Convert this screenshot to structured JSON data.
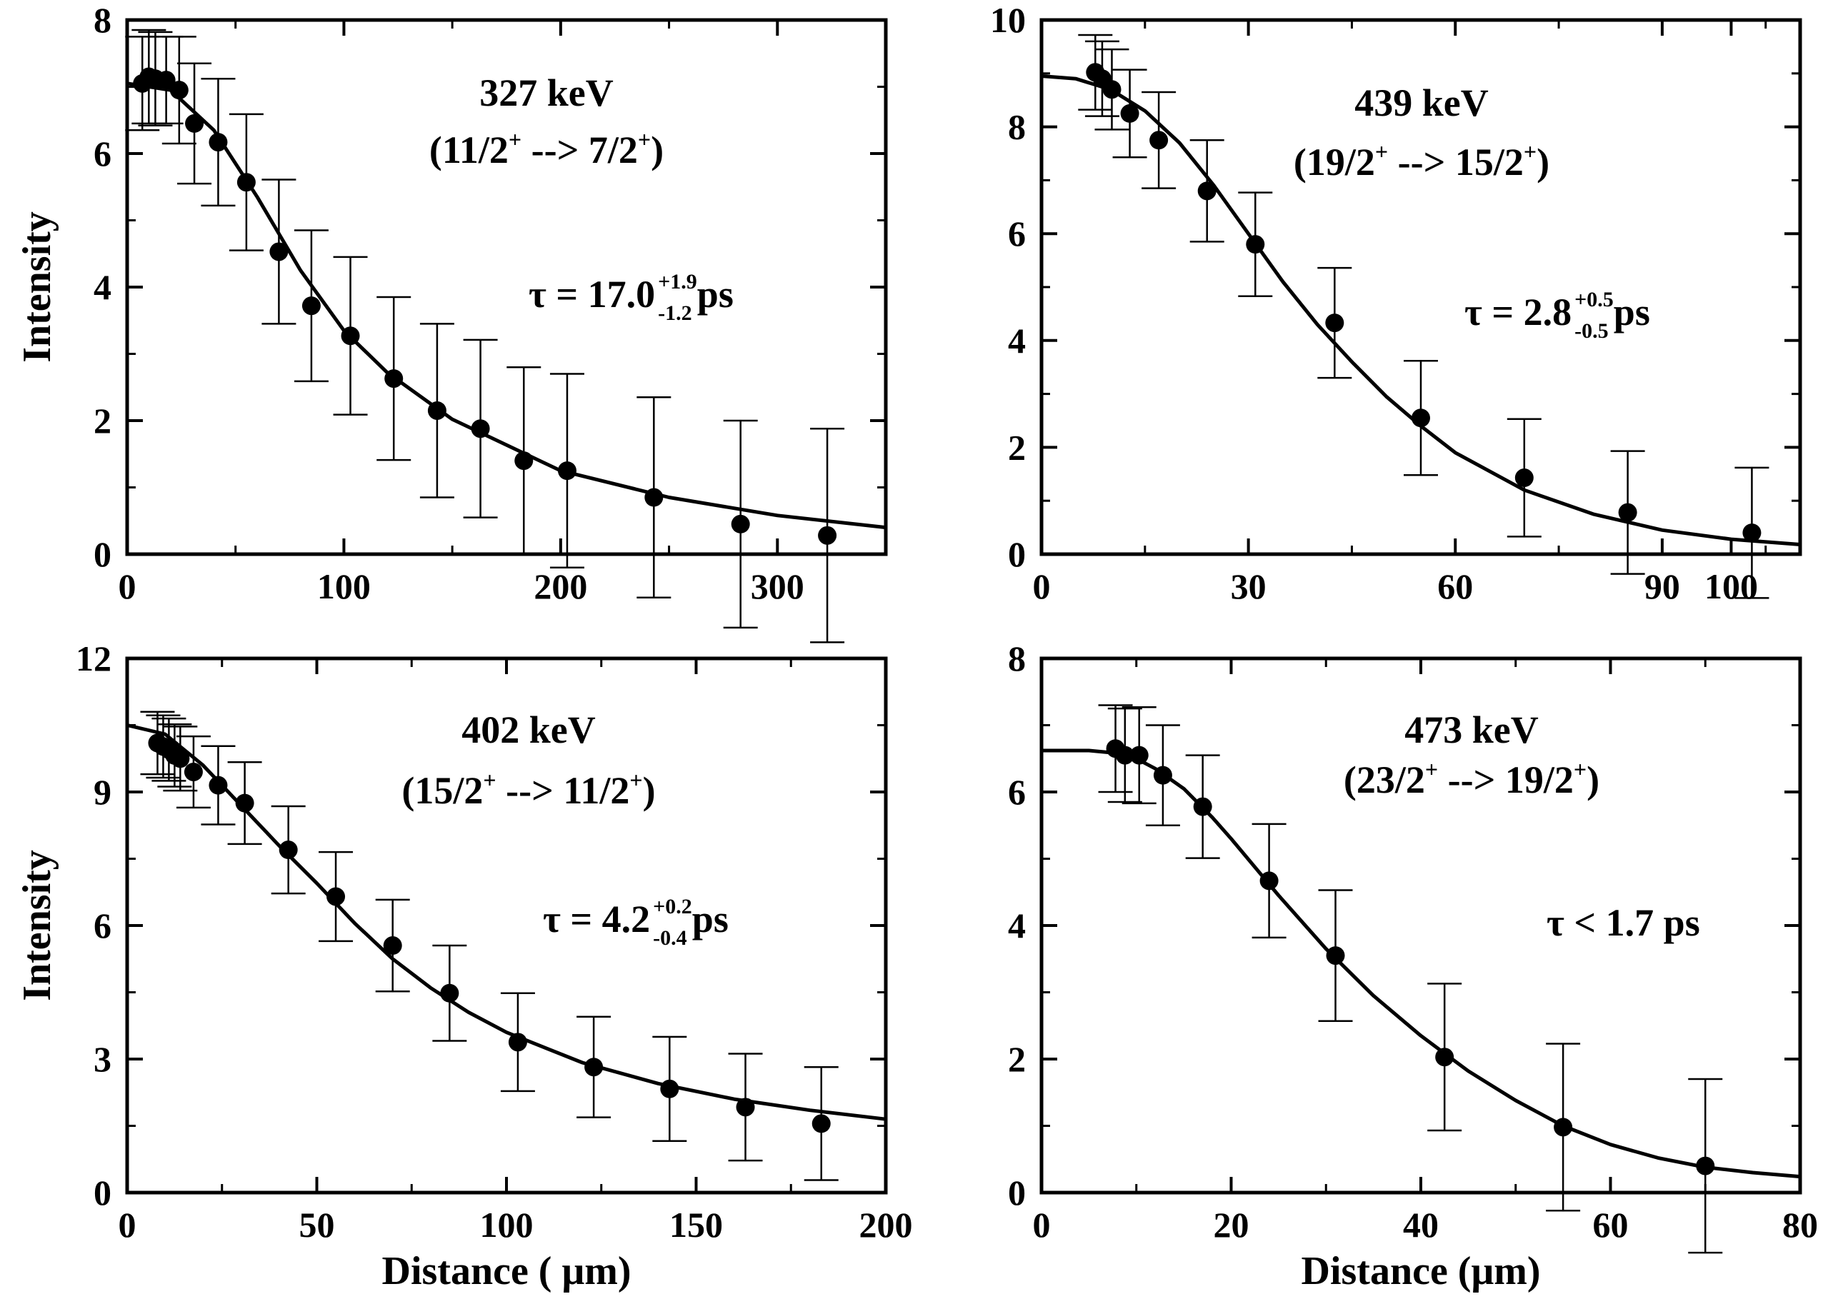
{
  "chart_data": [
    {
      "type": "scatter",
      "panel": "top-left",
      "title": "327 keV",
      "transition": {
        "a": "(11/2",
        "b": " --> 7/2",
        "c": ")",
        "sup": "+"
      },
      "tau": {
        "prefix": "τ = 17.0",
        "upper": "+1.9",
        "lower": "-1.2",
        "unit": " ps"
      },
      "xlabel": "",
      "ylabel": "Intensity",
      "xlim": [
        0,
        350
      ],
      "ylim": [
        0,
        8
      ],
      "xticks": [
        {
          "v": 0,
          "label": "0"
        },
        {
          "v": 100,
          "label": "100"
        },
        {
          "v": 200,
          "label": "200"
        },
        {
          "v": 300,
          "label": "300"
        }
      ],
      "yticks": [
        {
          "v": 0,
          "label": "0"
        },
        {
          "v": 2,
          "label": "2"
        },
        {
          "v": 4,
          "label": "4"
        },
        {
          "v": 6,
          "label": "6"
        },
        {
          "v": 8,
          "label": "8"
        }
      ],
      "points": [
        {
          "x": 7,
          "y": 7.05,
          "err": 0.7
        },
        {
          "x": 10,
          "y": 7.15,
          "err": 0.7
        },
        {
          "x": 13,
          "y": 7.12,
          "err": 0.7
        },
        {
          "x": 18,
          "y": 7.1,
          "err": 0.65
        },
        {
          "x": 24,
          "y": 6.95,
          "err": 0.8
        },
        {
          "x": 31,
          "y": 6.45,
          "err": 0.9
        },
        {
          "x": 42,
          "y": 6.17,
          "err": 0.95
        },
        {
          "x": 55,
          "y": 5.57,
          "err": 1.02
        },
        {
          "x": 70,
          "y": 4.53,
          "err": 1.08
        },
        {
          "x": 85,
          "y": 3.72,
          "err": 1.13
        },
        {
          "x": 103,
          "y": 3.27,
          "err": 1.18
        },
        {
          "x": 123,
          "y": 2.63,
          "err": 1.22
        },
        {
          "x": 143,
          "y": 2.15,
          "err": 1.3
        },
        {
          "x": 163,
          "y": 1.88,
          "err": 1.33
        },
        {
          "x": 183,
          "y": 1.4,
          "err": 1.4
        },
        {
          "x": 203,
          "y": 1.25,
          "err": 1.45
        },
        {
          "x": 243,
          "y": 0.85,
          "err": 1.5
        },
        {
          "x": 283,
          "y": 0.45,
          "err": 1.55
        },
        {
          "x": 323,
          "y": 0.28,
          "err": 1.6
        }
      ],
      "fit": {
        "x": [
          0,
          20,
          40,
          60,
          80,
          100,
          120,
          150,
          200,
          250,
          300,
          350
        ],
        "y": [
          7.05,
          6.95,
          6.35,
          5.35,
          4.25,
          3.35,
          2.72,
          2.02,
          1.25,
          0.85,
          0.58,
          0.4
        ]
      }
    },
    {
      "type": "scatter",
      "panel": "top-right",
      "title": "439 keV",
      "transition": {
        "a": "(19/2",
        "b": " --> 15/2",
        "c": ")",
        "sup": "+"
      },
      "tau": {
        "prefix": "τ = 2.8",
        "upper": "+0.5",
        "lower": "-0.5",
        "unit": " ps"
      },
      "xlabel": "",
      "ylabel": "",
      "xlim": [
        0,
        110
      ],
      "ylim": [
        0,
        10
      ],
      "xticks": [
        {
          "v": 0,
          "label": "0"
        },
        {
          "v": 30,
          "label": "30"
        },
        {
          "v": 60,
          "label": "60"
        },
        {
          "v": 90,
          "label": "90"
        },
        {
          "v": 100,
          "label": "100"
        }
      ],
      "yticks": [
        {
          "v": 0,
          "label": "0"
        },
        {
          "v": 2,
          "label": "2"
        },
        {
          "v": 4,
          "label": "4"
        },
        {
          "v": 6,
          "label": "6"
        },
        {
          "v": 8,
          "label": "8"
        },
        {
          "v": 10,
          "label": "10"
        }
      ],
      "points": [
        {
          "x": 7.8,
          "y": 9.02,
          "err": 0.7
        },
        {
          "x": 8.8,
          "y": 8.9,
          "err": 0.7
        },
        {
          "x": 10.2,
          "y": 8.7,
          "err": 0.75
        },
        {
          "x": 12.8,
          "y": 8.25,
          "err": 0.82
        },
        {
          "x": 17,
          "y": 7.75,
          "err": 0.9
        },
        {
          "x": 24,
          "y": 6.8,
          "err": 0.95
        },
        {
          "x": 31,
          "y": 5.8,
          "err": 0.97
        },
        {
          "x": 42.5,
          "y": 4.33,
          "err": 1.03
        },
        {
          "x": 55,
          "y": 2.55,
          "err": 1.07
        },
        {
          "x": 70,
          "y": 1.43,
          "err": 1.1
        },
        {
          "x": 85,
          "y": 0.78,
          "err": 1.15
        },
        {
          "x": 103,
          "y": 0.4,
          "err": 1.22
        }
      ],
      "fit": {
        "x": [
          0,
          5,
          10,
          15,
          20,
          25,
          30,
          35,
          40,
          45,
          50,
          55,
          60,
          70,
          80,
          90,
          100,
          110
        ],
        "y": [
          8.95,
          8.9,
          8.7,
          8.3,
          7.7,
          6.9,
          6.0,
          5.1,
          4.3,
          3.6,
          2.95,
          2.4,
          1.9,
          1.2,
          0.75,
          0.45,
          0.28,
          0.18
        ]
      }
    },
    {
      "type": "scatter",
      "panel": "bottom-left",
      "title": "402 keV",
      "transition": {
        "a": "(15/2",
        "b": " --> 11/2",
        "c": ")",
        "sup": "+"
      },
      "tau": {
        "prefix": "τ = 4.2",
        "upper": "+0.2",
        "lower": "-0.4",
        "unit": " ps"
      },
      "xlabel": "Distance ( μm)",
      "ylabel": "Intensity",
      "xlim": [
        0,
        200
      ],
      "ylim": [
        0,
        12
      ],
      "xticks": [
        {
          "v": 0,
          "label": "0"
        },
        {
          "v": 50,
          "label": "50"
        },
        {
          "v": 100,
          "label": "100"
        },
        {
          "v": 150,
          "label": "150"
        },
        {
          "v": 200,
          "label": "200"
        }
      ],
      "yticks": [
        {
          "v": 0,
          "label": "0"
        },
        {
          "v": 3,
          "label": "3"
        },
        {
          "v": 6,
          "label": "6"
        },
        {
          "v": 9,
          "label": "9"
        },
        {
          "v": 12,
          "label": "12"
        }
      ],
      "points": [
        {
          "x": 8,
          "y": 10.1,
          "err": 0.7
        },
        {
          "x": 9.5,
          "y": 10.02,
          "err": 0.7
        },
        {
          "x": 11,
          "y": 9.95,
          "err": 0.7
        },
        {
          "x": 12.5,
          "y": 9.82,
          "err": 0.7
        },
        {
          "x": 14,
          "y": 9.75,
          "err": 0.72
        },
        {
          "x": 17.5,
          "y": 9.45,
          "err": 0.8
        },
        {
          "x": 24,
          "y": 9.15,
          "err": 0.88
        },
        {
          "x": 31,
          "y": 8.75,
          "err": 0.92
        },
        {
          "x": 42.5,
          "y": 7.7,
          "err": 0.98
        },
        {
          "x": 55,
          "y": 6.65,
          "err": 1.0
        },
        {
          "x": 70,
          "y": 5.55,
          "err": 1.03
        },
        {
          "x": 85,
          "y": 4.48,
          "err": 1.07
        },
        {
          "x": 103,
          "y": 3.38,
          "err": 1.1
        },
        {
          "x": 123,
          "y": 2.82,
          "err": 1.13
        },
        {
          "x": 143,
          "y": 2.33,
          "err": 1.17
        },
        {
          "x": 163,
          "y": 1.92,
          "err": 1.2
        },
        {
          "x": 183,
          "y": 1.55,
          "err": 1.27
        }
      ],
      "fit": {
        "x": [
          0,
          10,
          20,
          30,
          40,
          50,
          60,
          70,
          80,
          90,
          100,
          120,
          140,
          160,
          180,
          200
        ],
        "y": [
          10.5,
          10.3,
          9.6,
          8.7,
          7.8,
          6.95,
          6.05,
          5.25,
          4.6,
          4.05,
          3.6,
          2.92,
          2.45,
          2.1,
          1.85,
          1.65
        ]
      }
    },
    {
      "type": "scatter",
      "panel": "bottom-right",
      "title": "473 keV",
      "transition": {
        "a": "(23/2",
        "b": " --> 19/2",
        "c": ")",
        "sup": "+"
      },
      "tau": {
        "prefix": "τ < 1.7 ps",
        "upper": "",
        "lower": "",
        "unit": ""
      },
      "xlabel": "Distance (μm)",
      "ylabel": "",
      "xlim": [
        0,
        80
      ],
      "ylim": [
        0,
        8
      ],
      "xticks": [
        {
          "v": 0,
          "label": "0"
        },
        {
          "v": 20,
          "label": "20"
        },
        {
          "v": 40,
          "label": "40"
        },
        {
          "v": 60,
          "label": "60"
        },
        {
          "v": 80,
          "label": "80"
        }
      ],
      "yticks": [
        {
          "v": 0,
          "label": "0"
        },
        {
          "v": 2,
          "label": "2"
        },
        {
          "v": 4,
          "label": "4"
        },
        {
          "v": 6,
          "label": "6"
        },
        {
          "v": 8,
          "label": "8"
        }
      ],
      "points": [
        {
          "x": 7.8,
          "y": 6.65,
          "err": 0.65
        },
        {
          "x": 8.8,
          "y": 6.55,
          "err": 0.7
        },
        {
          "x": 10.3,
          "y": 6.55,
          "err": 0.72
        },
        {
          "x": 12.8,
          "y": 6.25,
          "err": 0.75
        },
        {
          "x": 17,
          "y": 5.78,
          "err": 0.77
        },
        {
          "x": 24,
          "y": 4.67,
          "err": 0.85
        },
        {
          "x": 31,
          "y": 3.55,
          "err": 0.98
        },
        {
          "x": 42.5,
          "y": 2.03,
          "err": 1.1
        },
        {
          "x": 55,
          "y": 0.98,
          "err": 1.25
        },
        {
          "x": 70,
          "y": 0.4,
          "err": 1.3
        }
      ],
      "fit": {
        "x": [
          0,
          5,
          8,
          10,
          12,
          15,
          18,
          20,
          25,
          30,
          35,
          40,
          45,
          50,
          55,
          60,
          65,
          70,
          75,
          80
        ],
        "y": [
          6.62,
          6.62,
          6.58,
          6.5,
          6.35,
          6.05,
          5.62,
          5.3,
          4.45,
          3.65,
          2.95,
          2.35,
          1.82,
          1.38,
          1.0,
          0.72,
          0.52,
          0.38,
          0.3,
          0.24
        ]
      }
    }
  ]
}
